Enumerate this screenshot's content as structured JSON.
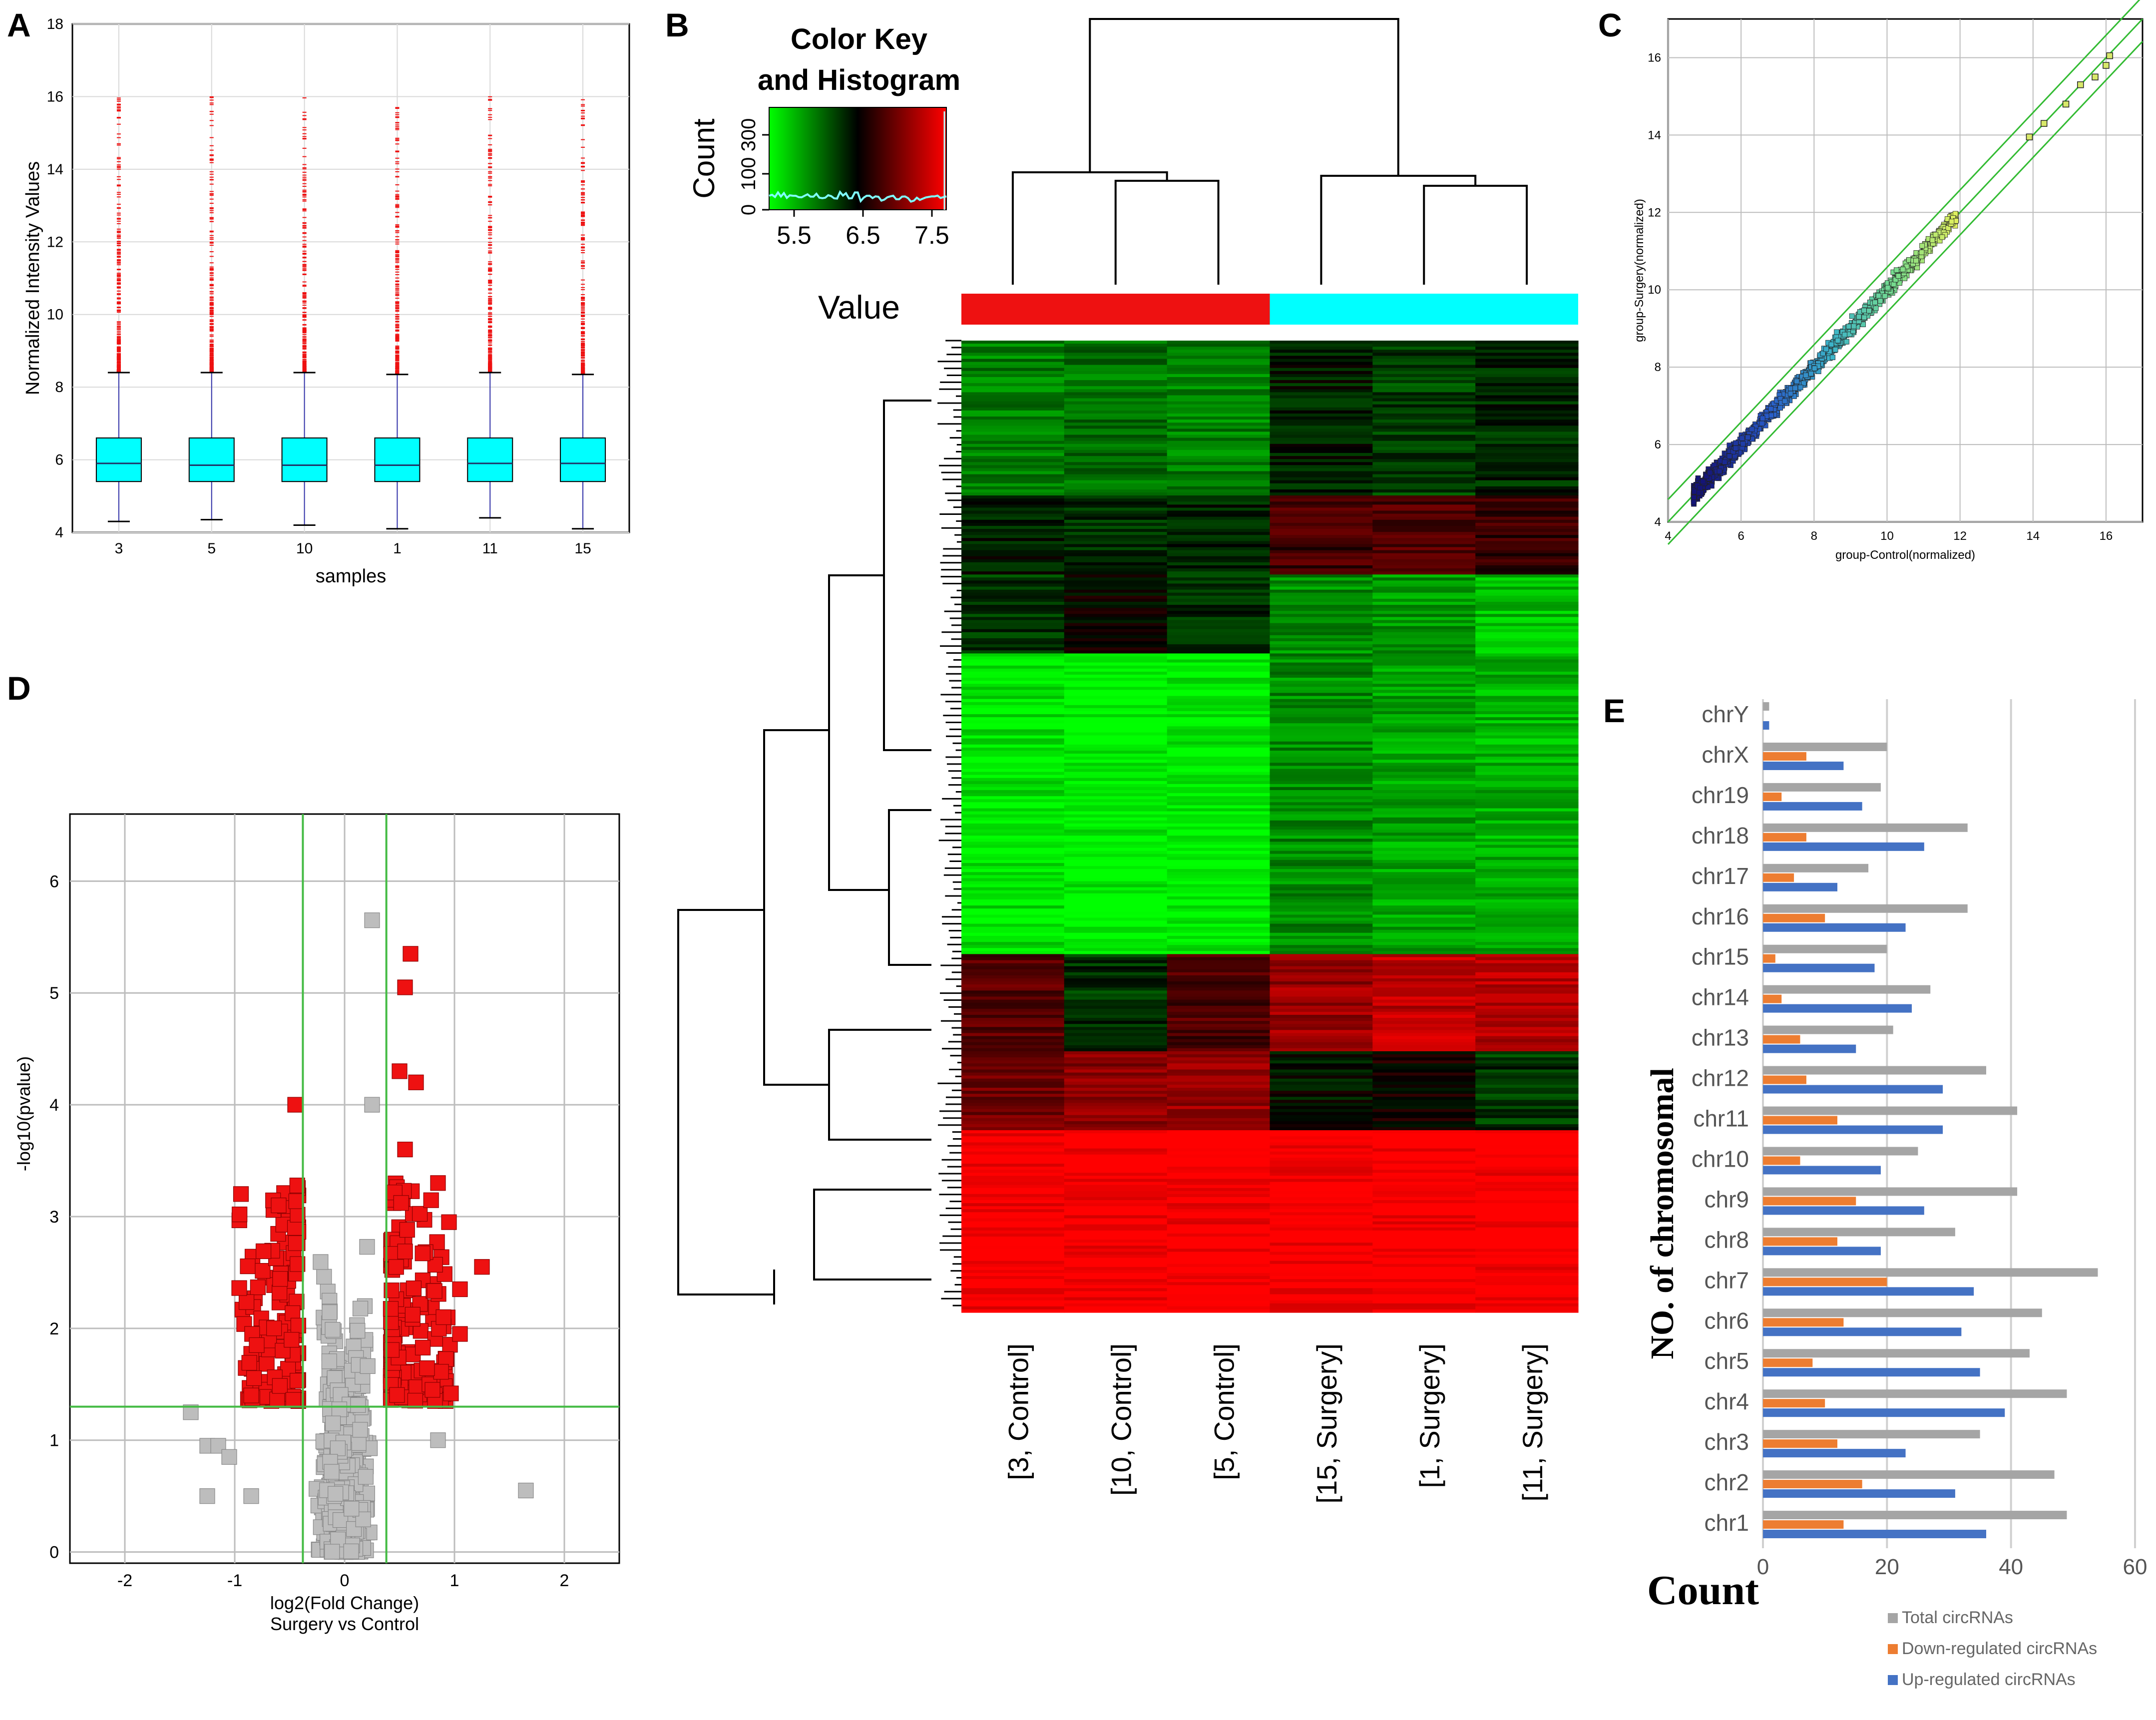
{
  "panel_labels": [
    "A",
    "B",
    "C",
    "D",
    "E"
  ],
  "chart_data": [
    {
      "id": "A",
      "type": "box",
      "title": "",
      "xlabel": "samples",
      "ylabel": "Normalized Intensity Values",
      "ylim": [
        4,
        18
      ],
      "yticks": [
        4,
        6,
        8,
        10,
        12,
        14,
        16,
        18
      ],
      "categories": [
        "3",
        "5",
        "10",
        "1",
        "11",
        "15"
      ],
      "boxes": [
        {
          "min": 4.3,
          "q1": 5.4,
          "median": 5.9,
          "q3": 6.6,
          "max": 8.4,
          "outlier_max": 16.0
        },
        {
          "min": 4.35,
          "q1": 5.4,
          "median": 5.85,
          "q3": 6.6,
          "max": 8.4,
          "outlier_max": 16.0
        },
        {
          "min": 4.2,
          "q1": 5.4,
          "median": 5.85,
          "q3": 6.6,
          "max": 8.4,
          "outlier_max": 16.0
        },
        {
          "min": 4.1,
          "q1": 5.4,
          "median": 5.85,
          "q3": 6.6,
          "max": 8.35,
          "outlier_max": 16.0
        },
        {
          "min": 4.4,
          "q1": 5.4,
          "median": 5.9,
          "q3": 6.6,
          "max": 8.4,
          "outlier_max": 16.0
        },
        {
          "min": 4.1,
          "q1": 5.4,
          "median": 5.9,
          "q3": 6.6,
          "max": 8.35,
          "outlier_max": 16.0
        }
      ],
      "colors": {
        "box": "#00ffff",
        "whisker": "#3333aa",
        "outlier": "#ee1111"
      }
    },
    {
      "id": "B",
      "type": "heatmap",
      "color_key_title": [
        "Color Key",
        "and Histogram"
      ],
      "color_key_ylabel": "Count",
      "color_key_yticks": [
        "0",
        "100",
        "300"
      ],
      "color_key_xticks": [
        "5.5",
        "6.5",
        "7.5"
      ],
      "value_label": "Value",
      "columns": [
        "[3, Control]",
        "[10, Control]",
        "[5, Control]",
        "[15, Surgery]",
        "[1, Surgery]",
        "[11, Surgery]"
      ],
      "group_colors": [
        "#ee1111",
        "#00ffff"
      ],
      "row_blocks": [
        {
          "weight": 16,
          "values": [
            -0.5,
            -0.45,
            -0.5,
            -0.1,
            -0.25,
            -0.15
          ]
        },
        {
          "weight": 8,
          "values": [
            -0.1,
            -0.2,
            -0.15,
            0.25,
            0.3,
            0.2
          ]
        },
        {
          "weight": 8,
          "values": [
            -0.2,
            0.0,
            -0.15,
            -0.55,
            -0.6,
            -0.75
          ]
        },
        {
          "weight": 31,
          "values": [
            -0.9,
            -0.95,
            -0.95,
            -0.55,
            -0.65,
            -0.7
          ]
        },
        {
          "weight": 10,
          "values": [
            0.35,
            -0.2,
            0.3,
            0.6,
            0.75,
            0.7
          ]
        },
        {
          "weight": 8,
          "values": [
            0.45,
            0.55,
            0.6,
            -0.05,
            0.05,
            -0.2
          ]
        },
        {
          "weight": 19,
          "values": [
            1.0,
            1.0,
            1.0,
            1.0,
            1.0,
            1.0
          ]
        }
      ]
    },
    {
      "id": "C",
      "type": "scatter",
      "xlabel": "group-Control(normalized)",
      "ylabel": "group-Surgery(normalized)",
      "xlim": [
        4,
        17
      ],
      "ylim": [
        4,
        17
      ],
      "xticks": [
        4,
        6,
        8,
        10,
        12,
        14,
        16
      ],
      "yticks": [
        4,
        6,
        8,
        10,
        12,
        14,
        16
      ],
      "highlight_points": [
        [
          13.9,
          13.95
        ],
        [
          14.3,
          14.3
        ],
        [
          14.9,
          14.8
        ],
        [
          15.3,
          15.3
        ],
        [
          15.7,
          15.5
        ],
        [
          16.0,
          15.8
        ],
        [
          16.1,
          16.05
        ]
      ],
      "fold_lines": [
        -0.58,
        0,
        0.58
      ]
    },
    {
      "id": "D",
      "type": "scatter",
      "xlabel": "log2(Fold Change)",
      "xlabel2": "Surgery vs Control",
      "ylabel": "-log10(pvalue)",
      "xlim": [
        -2.5,
        2.5
      ],
      "ylim": [
        -0.1,
        6.6
      ],
      "xticks": [
        -2,
        -1,
        0,
        1,
        2
      ],
      "yticks": [
        0,
        1,
        2,
        3,
        4,
        5,
        6
      ],
      "threshold_x": [
        -0.38,
        0.38
      ],
      "threshold_y": 1.3,
      "significant_points": [
        [
          0.6,
          5.35
        ],
        [
          0.55,
          5.05
        ],
        [
          0.5,
          4.3
        ],
        [
          0.65,
          4.2
        ],
        [
          -0.45,
          4.0
        ],
        [
          0.55,
          3.6
        ],
        [
          0.85,
          3.3
        ],
        [
          0.95,
          2.95
        ],
        [
          1.25,
          2.55
        ],
        [
          1.05,
          2.35
        ],
        [
          -0.8,
          1.85
        ],
        [
          1.05,
          1.95
        ],
        [
          -0.6,
          3.1
        ],
        [
          0.9,
          2.1
        ],
        [
          -0.85,
          1.4
        ],
        [
          0.8,
          1.45
        ]
      ],
      "other_points": [
        [
          0.25,
          5.65
        ],
        [
          0.25,
          4.0
        ],
        [
          -1.4,
          1.25
        ],
        [
          -1.25,
          0.95
        ],
        [
          -1.15,
          0.95
        ],
        [
          -1.05,
          0.85
        ],
        [
          -1.25,
          0.5
        ],
        [
          -0.85,
          0.5
        ],
        [
          1.65,
          0.55
        ],
        [
          0.85,
          1.0
        ]
      ],
      "colors": {
        "significant": "#ee1111",
        "other": "#bdbdbd"
      }
    },
    {
      "id": "E",
      "type": "bar",
      "orientation": "horizontal",
      "xlabel": "Count",
      "ylabel": "NO. of chromosomal",
      "xlim": [
        0,
        60
      ],
      "xticks": [
        0,
        20,
        40,
        60
      ],
      "categories": [
        "chrY",
        "chrX",
        "chr19",
        "chr18",
        "chr17",
        "chr16",
        "chr15",
        "chr14",
        "chr13",
        "chr12",
        "chr11",
        "chr10",
        "chr9",
        "chr8",
        "chr7",
        "chr6",
        "chr5",
        "chr4",
        "chr3",
        "chr2",
        "chr1"
      ],
      "series": [
        {
          "name": "Total circRNAs",
          "color": "#a5a5a5",
          "values": [
            1,
            20,
            19,
            33,
            17,
            33,
            20,
            27,
            21,
            36,
            41,
            25,
            41,
            31,
            54,
            45,
            43,
            49,
            35,
            47,
            49
          ]
        },
        {
          "name": "Down-regulated circRNAs",
          "color": "#ed7d31",
          "values": [
            0,
            7,
            3,
            7,
            5,
            10,
            2,
            3,
            6,
            7,
            12,
            6,
            15,
            12,
            20,
            13,
            8,
            10,
            12,
            16,
            13
          ]
        },
        {
          "name": "Up-regulated circRNAs",
          "color": "#4472c4",
          "values": [
            1,
            13,
            16,
            26,
            12,
            23,
            18,
            24,
            15,
            29,
            29,
            19,
            26,
            19,
            34,
            32,
            35,
            39,
            23,
            31,
            36
          ]
        }
      ]
    }
  ]
}
